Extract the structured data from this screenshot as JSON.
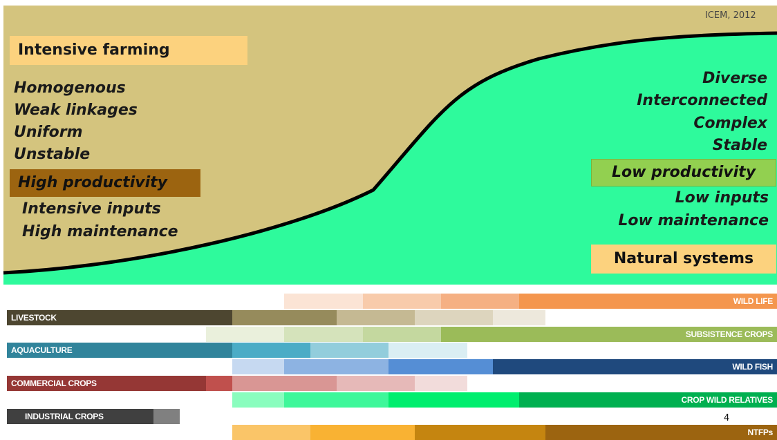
{
  "credit": "ICEM, 2012",
  "colors": {
    "tan": "#d4c47e",
    "green": "#2efa9c",
    "curve": "#000000"
  },
  "top_left": {
    "title": "Intensive farming",
    "traits": [
      "Homogenous",
      "Weak linkages",
      "Uniform",
      "Unstable"
    ],
    "productivity": "High productivity",
    "inputs": [
      "Intensive inputs",
      "High maintenance"
    ]
  },
  "top_right": {
    "traits": [
      "Diverse",
      "Interconnected",
      "Complex",
      "Stable"
    ],
    "productivity": "Low productivity",
    "inputs": [
      "Low inputs",
      "Low maintenance"
    ],
    "title": "Natural systems"
  },
  "bars": [
    {
      "label": "WILD LIFE",
      "align": "right",
      "segments": [
        "#fbe4d5",
        "#f8cbab",
        "#f5b083",
        "#f4964e"
      ]
    },
    {
      "label": "LIVESTOCK",
      "align": "left",
      "segments": [
        "#4d4630",
        "#968b5c",
        "#c5b993",
        "#ddd5be",
        "#ede8dc"
      ]
    },
    {
      "label": "SUBSISTENCE CROPS",
      "align": "right",
      "segments": [
        "#eaf0dc",
        "#d5e3bb",
        "#c4d89f",
        "#9bbb59"
      ]
    },
    {
      "label": "AQUACULTURE",
      "align": "left",
      "segments": [
        "#31849b",
        "#4bacc6",
        "#92cddc",
        "#daeef3"
      ]
    },
    {
      "label": "WILD FISH",
      "align": "right",
      "segments": [
        "#c6d9f1",
        "#8db3e2",
        "#558ed5",
        "#1f497d"
      ]
    },
    {
      "label": "COMMERCIAL CROPS",
      "align": "left",
      "segments": [
        "#953735",
        "#c0504d",
        "#d99694",
        "#e6b9b8",
        "#f2dcdb"
      ]
    },
    {
      "label": "CROP WILD RELATIVES",
      "align": "right",
      "segments": [
        "#8afdbe",
        "#3ef79a",
        "#00ee6e",
        "#00b050"
      ]
    },
    {
      "label": "INDUSTRIAL CROPS",
      "align": "left",
      "segments": [
        "#404040",
        "#808080"
      ]
    },
    {
      "label": "NTFPs",
      "align": "right",
      "segments": [
        "#fac568",
        "#f9b233",
        "#c58510",
        "#9c6410"
      ]
    }
  ],
  "page_number": "4"
}
